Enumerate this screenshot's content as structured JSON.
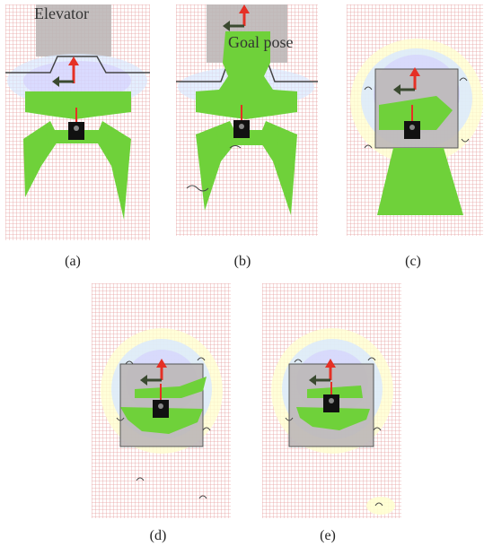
{
  "figure": {
    "panels": [
      {
        "id": "a",
        "caption": "(a)",
        "label": "Elevator"
      },
      {
        "id": "b",
        "caption": "(b)",
        "label": "Goal pose"
      },
      {
        "id": "c",
        "caption": "(c)"
      },
      {
        "id": "d",
        "caption": "(d)"
      },
      {
        "id": "e",
        "caption": "(e)"
      }
    ]
  },
  "colors": {
    "costmap_grid": "#e6a0a0",
    "footprint_green": "#6fd13a",
    "elevator_gray": "#bcb7b7",
    "arrow_red": "#e53025",
    "arrow_dark": "#3a4a30",
    "robot": "#111111"
  }
}
